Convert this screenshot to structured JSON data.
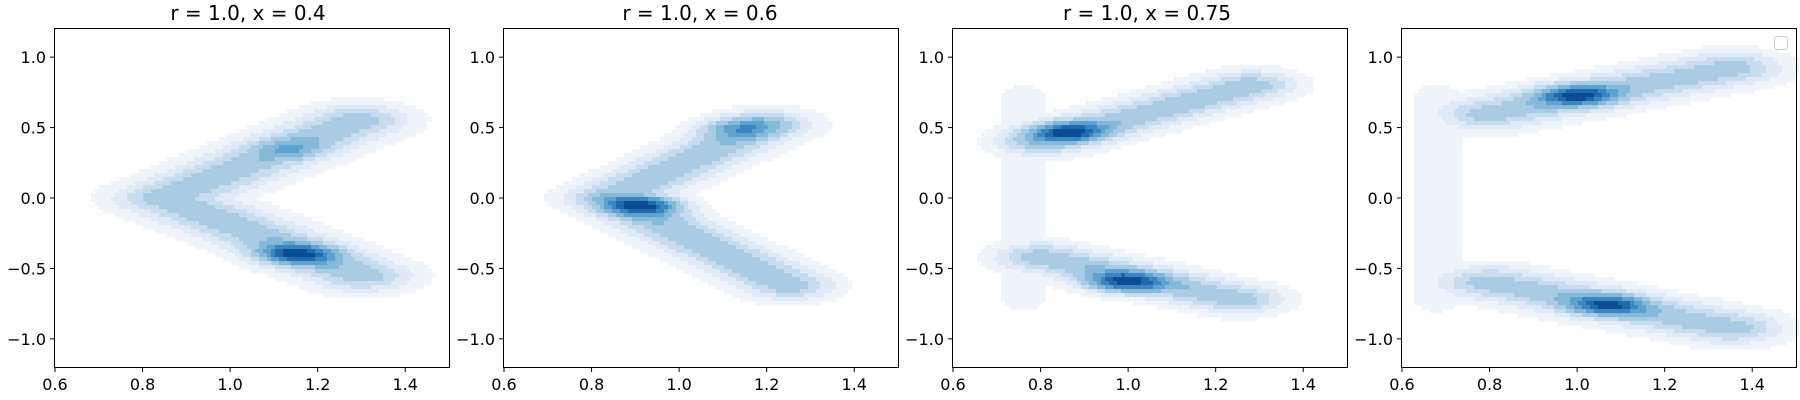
{
  "colors": {
    "levels": [
      "#eff4fb",
      "#dfeaf6",
      "#c8dcf0",
      "#a9cce4",
      "#84b9da",
      "#5ea3cf",
      "#3b86c0",
      "#1f69ad",
      "#0a4d92"
    ]
  },
  "chart_data": [
    {
      "type": "contour",
      "title": "r = 1.0, x = 0.4",
      "xlim": [
        0.6,
        1.5
      ],
      "ylim": [
        -1.2,
        1.2
      ],
      "xticks": [
        0.6,
        0.8,
        1.0,
        1.2,
        1.4
      ],
      "xtick_labels": [
        "0.6",
        "0.8",
        "1.0",
        "1.2",
        "1.4"
      ],
      "yticks": [
        -1.0,
        -0.5,
        0.0,
        0.5,
        1.0
      ],
      "ytick_labels": [
        "−1.0",
        "−0.5",
        "0.0",
        "0.5",
        "1.0"
      ],
      "grid": false,
      "density": {
        "branch_width": 0.08,
        "upper": {
          "start": [
            0.85,
            0.0
          ],
          "end": [
            1.29,
            0.55
          ],
          "peak": [
            1.14,
            0.35
          ],
          "peak_weight": 0.3
        },
        "lower": {
          "start": [
            0.85,
            0.0
          ],
          "end": [
            1.3,
            -0.55
          ],
          "peak": [
            1.15,
            -0.4
          ],
          "peak_weight": 1.0
        }
      }
    },
    {
      "type": "contour",
      "title": "r = 1.0, x = 0.6",
      "xlim": [
        0.6,
        1.5
      ],
      "ylim": [
        -1.2,
        1.2
      ],
      "xticks": [
        0.6,
        0.8,
        1.0,
        1.2,
        1.4
      ],
      "xtick_labels": [
        "0.6",
        "0.8",
        "1.0",
        "1.2",
        "1.4"
      ],
      "yticks": [
        -1.0,
        -0.5,
        0.0,
        0.5,
        1.0
      ],
      "ytick_labels": [
        "−1.0",
        "−0.5",
        "0.0",
        "0.5",
        "1.0"
      ],
      "grid": false,
      "density": {
        "branch_width": 0.07,
        "upper": {
          "start": [
            0.84,
            0.0
          ],
          "end": [
            1.2,
            0.52
          ],
          "peak": [
            1.13,
            0.5
          ],
          "peak_weight": 0.5
        },
        "lower": {
          "start": [
            0.84,
            0.0
          ],
          "end": [
            1.25,
            -0.62
          ],
          "peak": [
            0.92,
            -0.05
          ],
          "peak_weight": 1.0
        }
      }
    },
    {
      "type": "contour",
      "title": "r = 1.0, x = 0.75",
      "xlim": [
        0.6,
        1.5
      ],
      "ylim": [
        -1.2,
        1.2
      ],
      "xticks": [
        0.6,
        0.8,
        1.0,
        1.2,
        1.4
      ],
      "xtick_labels": [
        "0.6",
        "0.8",
        "1.0",
        "1.2",
        "1.4"
      ],
      "yticks": [
        -1.0,
        -0.5,
        0.0,
        0.5,
        1.0
      ],
      "ytick_labels": [
        "−1.0",
        "−0.5",
        "0.0",
        "0.5",
        "1.0"
      ],
      "grid": false,
      "density": {
        "branch_width": 0.07,
        "upper": {
          "start": [
            0.8,
            0.4
          ],
          "end": [
            1.28,
            0.8
          ],
          "peak": [
            0.86,
            0.47
          ],
          "peak_weight": 0.95
        },
        "lower": {
          "start": [
            0.8,
            -0.42
          ],
          "end": [
            1.25,
            -0.72
          ],
          "peak": [
            0.99,
            -0.6
          ],
          "peak_weight": 1.0
        },
        "bridge": {
          "x": 0.76,
          "weight": 0.08
        }
      }
    },
    {
      "type": "contour",
      "title": "",
      "xlim": [
        0.6,
        1.5
      ],
      "ylim": [
        -1.2,
        1.2
      ],
      "xticks": [
        0.6,
        0.8,
        1.0,
        1.2,
        1.4
      ],
      "xtick_labels": [
        "0.6",
        "0.8",
        "1.0",
        "1.2",
        "1.4"
      ],
      "yticks": [
        -1.0,
        -0.5,
        0.0,
        0.5,
        1.0
      ],
      "ytick_labels": [
        "−1.0",
        "−0.5",
        "0.0",
        "0.5",
        "1.0"
      ],
      "grid": false,
      "legend": {
        "placement": "top-right",
        "entries": []
      },
      "density": {
        "branch_width": 0.08,
        "upper": {
          "start": [
            0.8,
            0.6
          ],
          "end": [
            1.35,
            0.92
          ],
          "peak": [
            1.0,
            0.73
          ],
          "peak_weight": 1.0
        },
        "lower": {
          "start": [
            0.8,
            -0.6
          ],
          "end": [
            1.35,
            -0.92
          ],
          "peak": [
            1.07,
            -0.76
          ],
          "peak_weight": 0.95
        },
        "bridge": {
          "x": 0.68,
          "weight": 0.09
        }
      }
    }
  ]
}
